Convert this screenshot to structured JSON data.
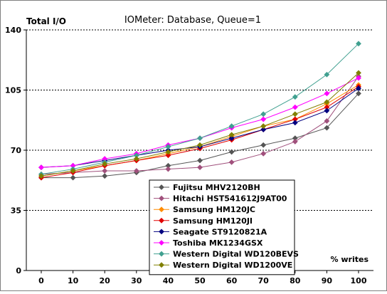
{
  "chart_data": {
    "type": "line",
    "title": "IOMeter: Database, Queue=1",
    "ylabel": "Total I/O",
    "xlabel": "% writes",
    "x": [
      0,
      10,
      20,
      30,
      40,
      50,
      60,
      70,
      80,
      90,
      100
    ],
    "ylim": [
      0,
      140
    ],
    "yticks": [
      0,
      35,
      70,
      105,
      140
    ],
    "grid": "horizontal dotted",
    "legend": "bottom-center",
    "series": [
      {
        "name": "Fujitsu MHV2120BH",
        "color": "#555555",
        "marker": "diamond",
        "values": [
          54,
          54,
          55,
          57,
          61,
          64,
          69,
          73,
          77,
          83,
          103
        ]
      },
      {
        "name": "Hitachi HST541612J9AT00",
        "color": "#A0507C",
        "marker": "diamond",
        "values": [
          56,
          57,
          58,
          58,
          59,
          60,
          63,
          68,
          75,
          87,
          113
        ]
      },
      {
        "name": "Samsung HM120JC",
        "color": "#FF8C00",
        "marker": "diamond",
        "values": [
          55,
          58,
          61,
          64,
          68,
          72,
          78,
          84,
          88,
          97,
          108
        ]
      },
      {
        "name": "Samsung HM120JI",
        "color": "#E00000",
        "marker": "diamond",
        "values": [
          54,
          57,
          61,
          64,
          67,
          71,
          76,
          82,
          88,
          95,
          107
        ]
      },
      {
        "name": "Seagate ST9120821A",
        "color": "#000080",
        "marker": "diamond",
        "values": [
          60,
          61,
          64,
          67,
          70,
          72,
          77,
          82,
          86,
          93,
          106
        ]
      },
      {
        "name": "Toshiba MK1234GSX",
        "color": "#FF00FF",
        "marker": "diamond",
        "values": [
          60,
          61,
          65,
          68,
          73,
          77,
          83,
          88,
          95,
          103,
          112
        ]
      },
      {
        "name": "Western Digital WD120BEVS",
        "color": "#40A090",
        "marker": "diamond",
        "values": [
          56,
          59,
          63,
          67,
          72,
          77,
          84,
          91,
          101,
          114,
          132
        ]
      },
      {
        "name": "Western Digital WD1200VE",
        "color": "#808000",
        "marker": "diamond",
        "values": [
          55,
          58,
          62,
          65,
          69,
          73,
          79,
          84,
          91,
          98,
          115
        ]
      }
    ]
  }
}
